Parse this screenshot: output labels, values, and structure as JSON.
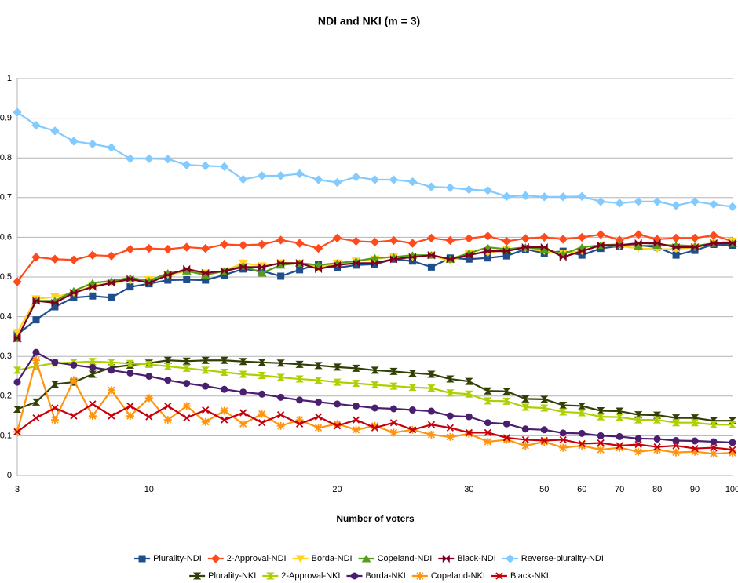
{
  "chart_data": {
    "type": "line",
    "title": "NDI and NKI (m = 3)",
    "x_label": "Number of voters",
    "categories": [
      "3",
      null,
      null,
      null,
      null,
      null,
      null,
      "10",
      null,
      null,
      null,
      null,
      null,
      null,
      null,
      null,
      null,
      "20",
      null,
      null,
      null,
      null,
      null,
      null,
      "30",
      null,
      null,
      null,
      "50",
      null,
      "60",
      null,
      "70",
      null,
      "80",
      null,
      "90",
      null,
      "100"
    ],
    "ylim": [
      0,
      1
    ],
    "yticks": [
      0,
      0.1,
      0.2,
      0.3,
      0.4,
      0.5,
      0.6,
      0.7,
      0.8,
      0.9,
      1
    ],
    "grid": true,
    "series": [
      {
        "name": "Plurality-NDI",
        "color": "#1f4e8c",
        "marker": "square",
        "values": [
          0.355,
          0.392,
          0.425,
          0.448,
          0.452,
          0.448,
          0.475,
          0.483,
          0.492,
          0.493,
          0.492,
          0.505,
          0.52,
          0.515,
          0.502,
          0.518,
          0.532,
          0.523,
          0.53,
          0.532,
          0.545,
          0.54,
          0.525,
          0.548,
          0.545,
          0.548,
          0.553,
          0.57,
          0.56,
          0.565,
          0.555,
          0.572,
          0.578,
          0.58,
          0.575,
          0.555,
          0.567,
          0.582,
          0.58
        ]
      },
      {
        "name": "2-Approval-NDI",
        "color": "#ff4a1c",
        "marker": "diamond",
        "values": [
          0.488,
          0.55,
          0.545,
          0.543,
          0.555,
          0.553,
          0.57,
          0.572,
          0.57,
          0.575,
          0.572,
          0.582,
          0.58,
          0.582,
          0.593,
          0.585,
          0.572,
          0.598,
          0.59,
          0.588,
          0.592,
          0.585,
          0.598,
          0.592,
          0.597,
          0.603,
          0.59,
          0.597,
          0.6,
          0.595,
          0.6,
          0.607,
          0.593,
          0.607,
          0.595,
          0.598,
          0.598,
          0.605,
          0.59
        ]
      },
      {
        "name": "Borda-NDI",
        "color": "#ffd320",
        "marker": "tri-down",
        "values": [
          0.36,
          0.445,
          0.45,
          0.46,
          0.478,
          0.485,
          0.49,
          0.493,
          0.505,
          0.515,
          0.51,
          0.515,
          0.535,
          0.528,
          0.535,
          0.535,
          0.525,
          0.535,
          0.54,
          0.545,
          0.552,
          0.55,
          0.555,
          0.54,
          0.56,
          0.56,
          0.57,
          0.572,
          0.565,
          0.56,
          0.565,
          0.58,
          0.578,
          0.572,
          0.57,
          0.57,
          0.575,
          0.585,
          0.59
        ]
      },
      {
        "name": "Copeland-NDI",
        "color": "#579d1c",
        "marker": "tri-up",
        "values": [
          0.345,
          0.44,
          0.44,
          0.465,
          0.485,
          0.49,
          0.498,
          0.49,
          0.51,
          0.515,
          0.505,
          0.515,
          0.528,
          0.51,
          0.53,
          0.535,
          0.53,
          0.535,
          0.54,
          0.548,
          0.55,
          0.555,
          0.555,
          0.545,
          0.56,
          0.575,
          0.57,
          0.575,
          0.57,
          0.558,
          0.575,
          0.58,
          0.582,
          0.578,
          0.58,
          0.58,
          0.578,
          0.585,
          0.585
        ]
      },
      {
        "name": "Black-NDI",
        "color": "#7e0021",
        "marker": "bowtie",
        "values": [
          0.345,
          0.44,
          0.435,
          0.46,
          0.475,
          0.485,
          0.495,
          0.485,
          0.505,
          0.52,
          0.51,
          0.515,
          0.525,
          0.525,
          0.535,
          0.535,
          0.52,
          0.53,
          0.535,
          0.535,
          0.545,
          0.55,
          0.555,
          0.545,
          0.555,
          0.565,
          0.565,
          0.575,
          0.575,
          0.55,
          0.565,
          0.58,
          0.58,
          0.585,
          0.585,
          0.575,
          0.575,
          0.585,
          0.585
        ]
      },
      {
        "name": "Reverse-plurality-NDI",
        "color": "#83caff",
        "marker": "arrow",
        "values": [
          0.915,
          0.882,
          0.868,
          0.842,
          0.835,
          0.826,
          0.798,
          0.798,
          0.797,
          0.782,
          0.78,
          0.778,
          0.746,
          0.755,
          0.755,
          0.76,
          0.745,
          0.738,
          0.752,
          0.745,
          0.745,
          0.74,
          0.727,
          0.725,
          0.72,
          0.718,
          0.703,
          0.705,
          0.702,
          0.702,
          0.703,
          0.69,
          0.686,
          0.69,
          0.69,
          0.68,
          0.69,
          0.683,
          0.677
        ]
      },
      {
        "name": "Plurality-NKI",
        "color": "#314004",
        "marker": "hourglass",
        "values": [
          0.167,
          0.185,
          0.23,
          0.235,
          0.255,
          0.272,
          0.278,
          0.283,
          0.29,
          0.288,
          0.29,
          0.29,
          0.287,
          0.285,
          0.283,
          0.28,
          0.277,
          0.273,
          0.27,
          0.265,
          0.262,
          0.258,
          0.255,
          0.243,
          0.237,
          0.213,
          0.212,
          0.193,
          0.192,
          0.177,
          0.175,
          0.163,
          0.162,
          0.153,
          0.152,
          0.145,
          0.145,
          0.138,
          0.138
        ]
      },
      {
        "name": "2-Approval-NKI",
        "color": "#aecf00",
        "marker": "hourglass",
        "values": [
          0.265,
          0.275,
          0.283,
          0.285,
          0.287,
          0.285,
          0.282,
          0.28,
          0.275,
          0.27,
          0.265,
          0.26,
          0.255,
          0.252,
          0.247,
          0.243,
          0.24,
          0.235,
          0.232,
          0.228,
          0.225,
          0.222,
          0.22,
          0.208,
          0.205,
          0.188,
          0.187,
          0.172,
          0.17,
          0.16,
          0.158,
          0.148,
          0.147,
          0.14,
          0.14,
          0.133,
          0.133,
          0.128,
          0.128
        ]
      },
      {
        "name": "Borda-NKI",
        "color": "#4b1f6f",
        "marker": "circle",
        "values": [
          0.235,
          0.31,
          0.285,
          0.278,
          0.272,
          0.265,
          0.258,
          0.25,
          0.24,
          0.232,
          0.225,
          0.217,
          0.21,
          0.205,
          0.197,
          0.19,
          0.185,
          0.18,
          0.175,
          0.17,
          0.168,
          0.165,
          0.162,
          0.15,
          0.148,
          0.133,
          0.13,
          0.117,
          0.115,
          0.107,
          0.106,
          0.1,
          0.098,
          0.093,
          0.092,
          0.088,
          0.087,
          0.085,
          0.083
        ]
      },
      {
        "name": "Copeland-NKI",
        "color": "#ff950e",
        "marker": "star",
        "values": [
          0.11,
          0.29,
          0.14,
          0.24,
          0.15,
          0.215,
          0.15,
          0.195,
          0.14,
          0.175,
          0.135,
          0.163,
          0.13,
          0.155,
          0.125,
          0.14,
          0.12,
          0.13,
          0.115,
          0.125,
          0.108,
          0.115,
          0.103,
          0.097,
          0.105,
          0.085,
          0.09,
          0.075,
          0.085,
          0.07,
          0.075,
          0.065,
          0.07,
          0.06,
          0.065,
          0.058,
          0.06,
          0.055,
          0.057
        ]
      },
      {
        "name": "Black-NKI",
        "color": "#c5000b",
        "marker": "x",
        "values": [
          0.11,
          0.145,
          0.17,
          0.15,
          0.18,
          0.15,
          0.175,
          0.148,
          0.175,
          0.145,
          0.165,
          0.14,
          0.158,
          0.133,
          0.153,
          0.13,
          0.148,
          0.125,
          0.14,
          0.12,
          0.133,
          0.115,
          0.128,
          0.12,
          0.108,
          0.108,
          0.095,
          0.09,
          0.088,
          0.09,
          0.08,
          0.082,
          0.075,
          0.078,
          0.072,
          0.075,
          0.068,
          0.07,
          0.065
        ]
      }
    ]
  }
}
